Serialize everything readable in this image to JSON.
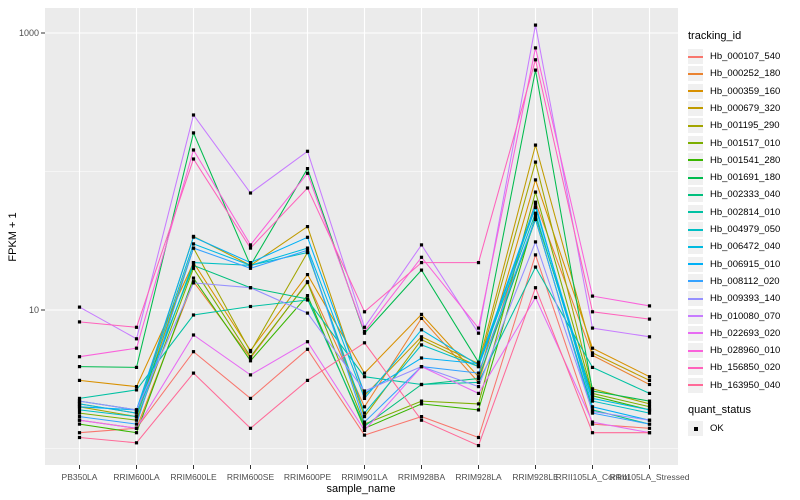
{
  "chart_data": {
    "type": "line",
    "title": "",
    "xlabel": "sample_name",
    "ylabel": "FPKM + 1",
    "y_scale": "log10",
    "ylim": [
      0.76,
      1500
    ],
    "y_ticks": [
      1000,
      10
    ],
    "y_tick_labels": [
      "1000",
      "10"
    ],
    "y_minor_gridlines": [
      100,
      1
    ],
    "grid": {
      "panel_bg": "#EBEBEB",
      "major_gridline": "#FFFFFF",
      "minor_gridline": "#FFFFFF"
    },
    "point_style": {
      "color": "#000000",
      "shape": "square"
    },
    "categories": [
      "PB350LA",
      "RRIM600LA",
      "RRIM600LE",
      "RRIM600SE",
      "RRIM600PE",
      "RRIM901LA",
      "RRIM928BA",
      "RRIM928LA",
      "RRIM928LE",
      "RRII105LA_Control",
      "RRII105LA_Stressed"
    ],
    "series": [
      {
        "name": "Hb_000107_540",
        "color": "#F8766D",
        "values": [
          1.3,
          1.4,
          5.0,
          2.3,
          5.2,
          1.25,
          1.7,
          1.2,
          25,
          1.5,
          1.4
        ]
      },
      {
        "name": "Hb_000252_180",
        "color": "#EA8331",
        "values": [
          1.6,
          1.4,
          16,
          4.5,
          16,
          2.0,
          8.7,
          3.0,
          60,
          4.7,
          2.9
        ]
      },
      {
        "name": "Hb_000359_160",
        "color": "#D89000",
        "values": [
          3.1,
          2.8,
          22,
          5.1,
          18,
          3.5,
          9.3,
          3.3,
          87,
          5.3,
          3.3
        ]
      },
      {
        "name": "Hb_000679_320",
        "color": "#C09B00",
        "values": [
          2.1,
          1.8,
          34,
          21,
          40,
          2.4,
          6.4,
          4.1,
          155,
          4.9,
          3.1
        ]
      },
      {
        "name": "Hb_001195_290",
        "color": "#A3A500",
        "values": [
          2.0,
          1.7,
          28,
          5.0,
          26,
          1.7,
          6.1,
          3.9,
          117,
          2.7,
          2.1
        ]
      },
      {
        "name": "Hb_001517_010",
        "color": "#7CAE00",
        "values": [
          1.8,
          1.6,
          20,
          4.6,
          15.8,
          1.5,
          2.2,
          2.1,
          71,
          2.5,
          2.0
        ]
      },
      {
        "name": "Hb_001541_280",
        "color": "#39B600",
        "values": [
          1.5,
          1.3,
          17,
          4.3,
          12.7,
          1.4,
          2.1,
          1.9,
          48,
          2.4,
          1.9
        ]
      },
      {
        "name": "Hb_001691_180",
        "color": "#00BB4E",
        "values": [
          3.9,
          3.85,
          190,
          21,
          105,
          6.8,
          19.4,
          4.2,
          540,
          2.6,
          2.2
        ]
      },
      {
        "name": "Hb_002333_040",
        "color": "#00BF7D",
        "values": [
          2.2,
          1.9,
          21,
          14.5,
          12,
          1.45,
          2.9,
          3.2,
          45,
          1.9,
          1.5
        ]
      },
      {
        "name": "Hb_002814_010",
        "color": "#00C1A3",
        "values": [
          2.3,
          2.65,
          9.2,
          10.6,
          11.8,
          3.3,
          2.9,
          3.0,
          20.4,
          3.85,
          2.5
        ]
      },
      {
        "name": "Hb_004979_050",
        "color": "#00BFC4",
        "values": [
          1.9,
          1.7,
          22,
          21,
          26,
          1.8,
          5.6,
          3.9,
          50,
          2.2,
          1.8
        ]
      },
      {
        "name": "Hb_006472_040",
        "color": "#00BAE0",
        "values": [
          2.1,
          1.8,
          30,
          21,
          28,
          2.3,
          7.2,
          4.0,
          55,
          2.3,
          1.9
        ]
      },
      {
        "name": "Hb_006915_010",
        "color": "#00B0F6",
        "values": [
          2.0,
          1.9,
          33.6,
          22,
          33.5,
          2.5,
          4.5,
          4.1,
          58,
          2.0,
          1.6
        ]
      },
      {
        "name": "Hb_008112_020",
        "color": "#35A2FF",
        "values": [
          1.7,
          1.5,
          28,
          20,
          27,
          1.55,
          3.9,
          3.5,
          46,
          1.8,
          1.5
        ]
      },
      {
        "name": "Hb_009393_140",
        "color": "#9590FF",
        "values": [
          2.2,
          1.9,
          15.7,
          14.5,
          9.5,
          2.6,
          3.9,
          2.8,
          31,
          1.85,
          1.6
        ]
      },
      {
        "name": "Hb_010080_070",
        "color": "#C77CFF",
        "values": [
          10.5,
          6.2,
          256,
          70,
          140,
          7.5,
          29.5,
          6.8,
          1140,
          7.4,
          6.4
        ]
      },
      {
        "name": "Hb_022693_020",
        "color": "#E76BF3",
        "values": [
          1.6,
          1.4,
          6.6,
          3.4,
          5.9,
          1.35,
          3.9,
          2.5,
          12.3,
          1.55,
          1.3
        ]
      },
      {
        "name": "Hb_028960_010",
        "color": "#FA62DB",
        "values": [
          4.6,
          5.3,
          143,
          29.5,
          97,
          7.0,
          24,
          7.4,
          780,
          12.6,
          10.7
        ]
      },
      {
        "name": "Hb_156850_020",
        "color": "#FF62BC",
        "values": [
          8.2,
          7.5,
          123,
          28,
          76,
          9.7,
          22,
          22,
          640,
          9.7,
          8.6
        ]
      },
      {
        "name": "Hb_163950_040",
        "color": "#FF6A98",
        "values": [
          1.2,
          1.1,
          3.5,
          1.4,
          3.1,
          5.8,
          1.6,
          1.05,
          14.5,
          1.3,
          1.3
        ]
      }
    ],
    "legend_position": "right"
  },
  "legend": {
    "tracking_title": "tracking_id",
    "quant_title": "quant_status",
    "quant_items": [
      {
        "label": "OK"
      }
    ]
  }
}
